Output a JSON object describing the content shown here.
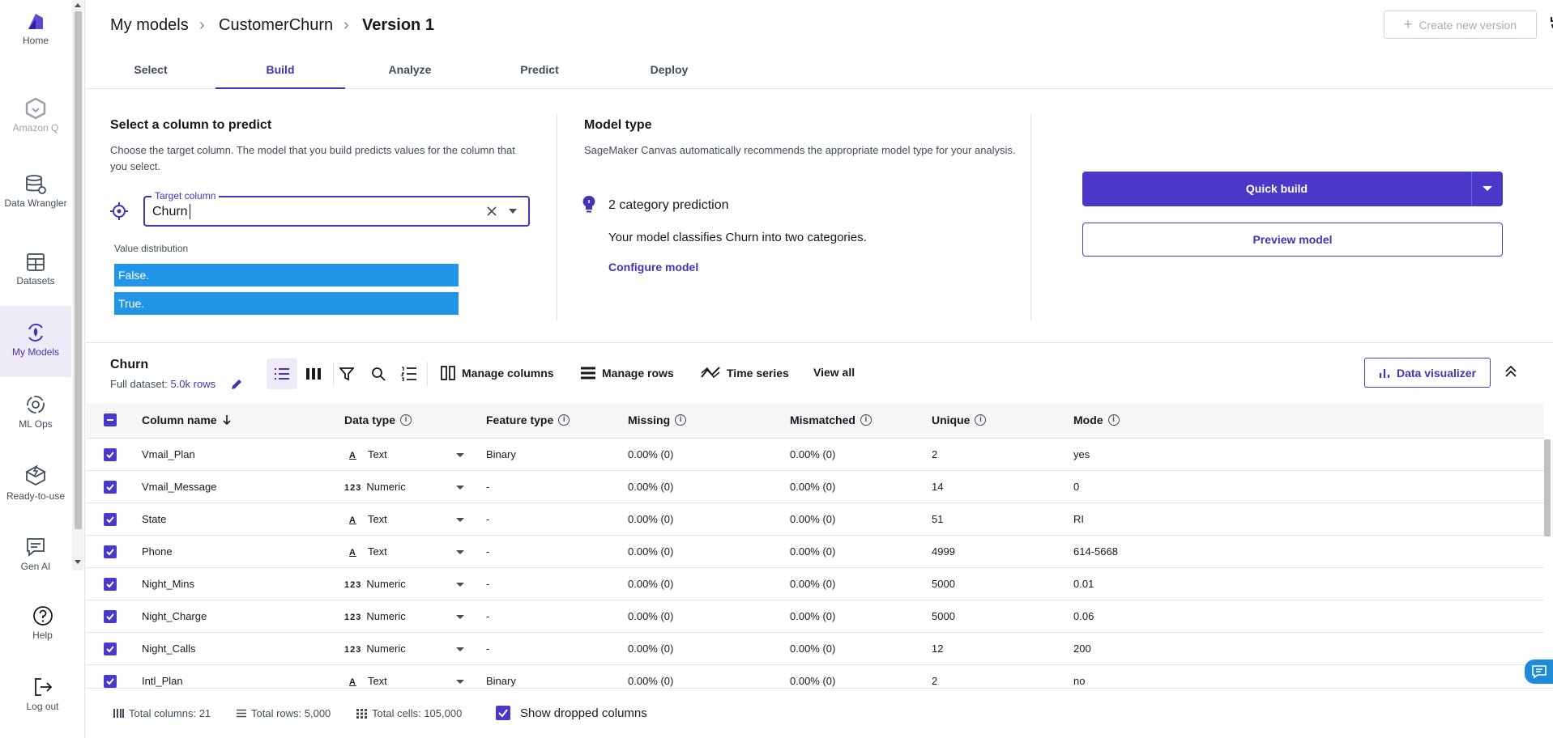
{
  "nav": {
    "items": [
      {
        "label": "Home",
        "icon": "home-icon"
      },
      {
        "label": "Amazon Q",
        "icon": "amazon-q-icon"
      },
      {
        "label": "Data Wrangler",
        "icon": "data-wrangler-icon"
      },
      {
        "label": "Datasets",
        "icon": "datasets-icon"
      },
      {
        "label": "My Models",
        "icon": "my-models-icon"
      },
      {
        "label": "ML Ops",
        "icon": "ml-ops-icon"
      },
      {
        "label": "Ready-to-use",
        "icon": "ready-to-use-icon"
      },
      {
        "label": "Gen AI",
        "icon": "gen-ai-icon"
      }
    ],
    "help": "Help",
    "logout": "Log out"
  },
  "breadcrumb": {
    "root": "My models",
    "model": "CustomerChurn",
    "version": "Version 1"
  },
  "header": {
    "new_version": "Create new version"
  },
  "tabs": [
    "Select",
    "Build",
    "Analyze",
    "Predict",
    "Deploy"
  ],
  "active_tab": "Build",
  "predict": {
    "title": "Select a column to predict",
    "description": "Choose the target column. The model that you build predicts values for the column that you select.",
    "field_label": "Target column",
    "field_value": "Churn",
    "value_distribution_label": "Value distribution",
    "values": [
      "False.",
      "True."
    ]
  },
  "model_type": {
    "title": "Model type",
    "description": "SageMaker Canvas automatically recommends the appropriate model type for your analysis.",
    "category": "2 category prediction",
    "detail": "Your model classifies Churn into two categories.",
    "configure": "Configure model"
  },
  "actions": {
    "quick_build": "Quick build",
    "preview": "Preview model"
  },
  "dataset": {
    "title": "Churn",
    "full_dataset_label": "Full dataset:",
    "rows_link": "5.0k rows",
    "manage_columns": "Manage columns",
    "manage_rows": "Manage rows",
    "time_series": "Time series",
    "view_all": "View all",
    "data_visualizer": "Data visualizer"
  },
  "table": {
    "headers": [
      "Column name",
      "Data type",
      "Feature type",
      "Missing",
      "Mismatched",
      "Unique",
      "Mode"
    ],
    "rows": [
      {
        "name": "Vmail_Plan",
        "type_icon": "A",
        "type": "Text",
        "feature": "Binary",
        "missing": "0.00% (0)",
        "mismatched": "0.00% (0)",
        "unique": "2",
        "mode": "yes"
      },
      {
        "name": "Vmail_Message",
        "type_icon": "123",
        "type": "Numeric",
        "feature": "-",
        "missing": "0.00% (0)",
        "mismatched": "0.00% (0)",
        "unique": "14",
        "mode": "0"
      },
      {
        "name": "State",
        "type_icon": "A",
        "type": "Text",
        "feature": "-",
        "missing": "0.00% (0)",
        "mismatched": "0.00% (0)",
        "unique": "51",
        "mode": "RI"
      },
      {
        "name": "Phone",
        "type_icon": "A",
        "type": "Text",
        "feature": "-",
        "missing": "0.00% (0)",
        "mismatched": "0.00% (0)",
        "unique": "4999",
        "mode": "614-5668"
      },
      {
        "name": "Night_Mins",
        "type_icon": "123",
        "type": "Numeric",
        "feature": "-",
        "missing": "0.00% (0)",
        "mismatched": "0.00% (0)",
        "unique": "5000",
        "mode": "0.01"
      },
      {
        "name": "Night_Charge",
        "type_icon": "123",
        "type": "Numeric",
        "feature": "-",
        "missing": "0.00% (0)",
        "mismatched": "0.00% (0)",
        "unique": "5000",
        "mode": "0.06"
      },
      {
        "name": "Night_Calls",
        "type_icon": "123",
        "type": "Numeric",
        "feature": "-",
        "missing": "0.00% (0)",
        "mismatched": "0.00% (0)",
        "unique": "12",
        "mode": "200"
      },
      {
        "name": "Intl_Plan",
        "type_icon": "A",
        "type": "Text",
        "feature": "Binary",
        "missing": "0.00% (0)",
        "mismatched": "0.00% (0)",
        "unique": "2",
        "mode": "no"
      }
    ]
  },
  "footer": {
    "total_columns": "Total columns: 21",
    "total_rows": "Total rows: 5,000",
    "total_cells": "Total cells: 105,000",
    "show_dropped": "Show dropped columns"
  },
  "colors": {
    "accent": "#4b38c9",
    "distribution_bar": "#2196e8"
  }
}
